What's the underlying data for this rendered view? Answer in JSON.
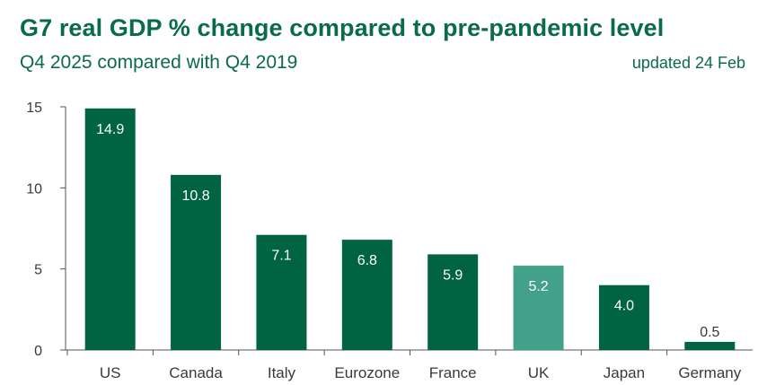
{
  "header": {
    "title": "G7 real GDP % change compared to pre-pandemic level",
    "subtitle": "Q4 2025 compared with Q4 2019",
    "updated": "updated 24 Feb"
  },
  "colors": {
    "bar": "#006341",
    "highlight": "#42a08b",
    "text": "#0a6b47",
    "axis": "#555555"
  },
  "chart_data": {
    "type": "bar",
    "title": "G7 real GDP % change compared to pre-pandemic level",
    "subtitle": "Q4 2025 compared with Q4 2019",
    "categories": [
      "US",
      "Canada",
      "Italy",
      "Eurozone",
      "France",
      "UK",
      "Japan",
      "Germany"
    ],
    "values": [
      14.9,
      10.8,
      7.1,
      6.8,
      5.9,
      5.2,
      4.0,
      0.5
    ],
    "data_labels": [
      "14.9",
      "10.8",
      "7.1",
      "6.8",
      "5.9",
      "5.2",
      "4.0",
      "0.5"
    ],
    "highlight": "UK",
    "ylim": [
      0,
      15
    ],
    "yticks": [
      0,
      5,
      10,
      15
    ],
    "grid": false,
    "legend": "none"
  }
}
